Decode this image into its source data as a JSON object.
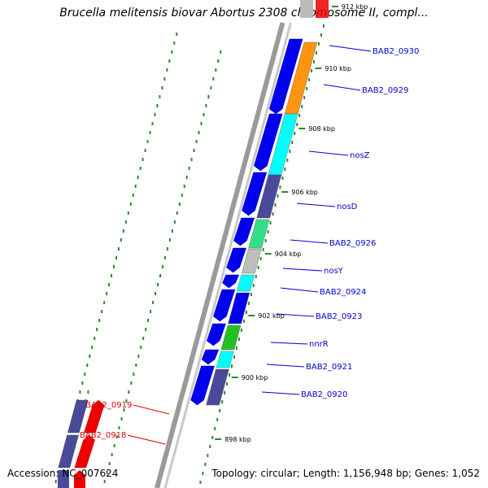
{
  "map": {
    "title": "Brucella melitensis biovar Abortus 2308 chromosome II, compl...",
    "accession_text": "Accession: NC_007624",
    "summary_text": "Topology: circular; Length: 1,156,948 bp; Genes: 1,052",
    "colors": {
      "backbone": "#8c8c8c",
      "forward_strand": "#0000ee",
      "ticks": "#2a8a2a",
      "label_forward": "#0000cc",
      "label_reverse": "#dd0000",
      "reverse_strand": "#ee0000"
    }
  },
  "ticks": [
    {
      "label": "912 kbp",
      "faded": true
    },
    {
      "label": "910 kbp"
    },
    {
      "label": "908 kbp"
    },
    {
      "label": "906 kbp"
    },
    {
      "label": "904 kbp"
    },
    {
      "label": "902 kbp"
    },
    {
      "label": "900 kbp"
    },
    {
      "label": "898 kbp"
    }
  ],
  "genes": [
    {
      "name": "BAB2_0930",
      "strand": "+",
      "color": "#ff9410"
    },
    {
      "name": "BAB2_0929",
      "strand": "+",
      "color": "#ff9410"
    },
    {
      "name": "nosZ",
      "strand": "+",
      "color": "#00ffff"
    },
    {
      "name": "nosD",
      "strand": "+",
      "color": "#4a4a9a"
    },
    {
      "name": "BAB2_0926",
      "strand": "+",
      "color": "#33e08a"
    },
    {
      "name": "nosY",
      "strand": "+",
      "color": "#bdbdbd"
    },
    {
      "name": "BAB2_0924",
      "strand": "+",
      "color": "#00ffff"
    },
    {
      "name": "BAB2_0923",
      "strand": "+",
      "color": "#0000ee"
    },
    {
      "name": "nnrR",
      "strand": "+",
      "color": "#22c022"
    },
    {
      "name": "BAB2_0921",
      "strand": "+",
      "color": "#00ffff"
    },
    {
      "name": "BAB2_0920",
      "strand": "+",
      "color": "#4a4a9a"
    },
    {
      "name": "BAB2_0919",
      "strand": "-",
      "color": "#4a4a9a"
    },
    {
      "name": "BAB2_0918",
      "strand": "-",
      "color": "#4a4a9a"
    }
  ]
}
